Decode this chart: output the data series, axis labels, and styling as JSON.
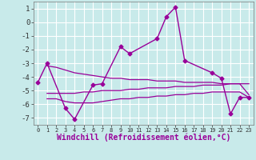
{
  "background_color": "#c8eaea",
  "grid_color": "#ffffff",
  "line_color": "#990099",
  "xlabel": "Windchill (Refroidissement éolien,°C)",
  "xlim": [
    -0.5,
    23.5
  ],
  "ylim": [
    -7.5,
    1.5
  ],
  "yticks": [
    1,
    0,
    -1,
    -2,
    -3,
    -4,
    -5,
    -6,
    -7
  ],
  "xticks": [
    0,
    1,
    2,
    3,
    4,
    5,
    6,
    7,
    8,
    9,
    10,
    11,
    12,
    13,
    14,
    15,
    16,
    17,
    18,
    19,
    20,
    21,
    22,
    23
  ],
  "jagged_x": [
    0,
    1,
    3,
    4,
    6,
    7,
    9,
    10,
    13,
    14,
    15,
    16,
    19,
    20,
    21,
    22,
    23
  ],
  "jagged_y": [
    -4.4,
    -3.0,
    -6.3,
    -7.1,
    -4.6,
    -4.5,
    -1.8,
    -2.3,
    -1.2,
    0.4,
    1.1,
    -2.8,
    -3.7,
    -4.1,
    -6.7,
    -5.5,
    -5.5
  ],
  "band1_x": [
    1,
    2,
    3,
    4,
    5,
    6,
    7,
    8,
    9,
    10,
    11,
    12,
    13,
    14,
    15,
    16,
    17,
    18,
    19,
    20,
    21,
    22,
    23
  ],
  "band1_y": [
    -3.2,
    -3.3,
    -3.5,
    -3.7,
    -3.8,
    -3.9,
    -4.0,
    -4.1,
    -4.1,
    -4.2,
    -4.2,
    -4.2,
    -4.3,
    -4.3,
    -4.3,
    -4.4,
    -4.4,
    -4.4,
    -4.4,
    -4.5,
    -4.5,
    -4.5,
    -4.5
  ],
  "band2_x": [
    1,
    2,
    3,
    4,
    5,
    6,
    7,
    8,
    9,
    10,
    11,
    12,
    13,
    14,
    15,
    16,
    17,
    18,
    19,
    20,
    21,
    22,
    23
  ],
  "band2_y": [
    -5.2,
    -5.2,
    -5.2,
    -5.2,
    -5.1,
    -5.1,
    -5.0,
    -5.0,
    -5.0,
    -4.9,
    -4.9,
    -4.8,
    -4.8,
    -4.8,
    -4.7,
    -4.7,
    -4.7,
    -4.6,
    -4.6,
    -4.6,
    -4.5,
    -4.5,
    -5.3
  ],
  "band3_x": [
    1,
    2,
    3,
    4,
    5,
    6,
    7,
    8,
    9,
    10,
    11,
    12,
    13,
    14,
    15,
    16,
    17,
    18,
    19,
    20,
    21,
    22,
    23
  ],
  "band3_y": [
    -5.6,
    -5.6,
    -5.8,
    -5.9,
    -5.9,
    -5.9,
    -5.8,
    -5.7,
    -5.6,
    -5.6,
    -5.5,
    -5.5,
    -5.4,
    -5.4,
    -5.3,
    -5.3,
    -5.2,
    -5.2,
    -5.1,
    -5.1,
    -5.1,
    -5.1,
    -5.5
  ]
}
